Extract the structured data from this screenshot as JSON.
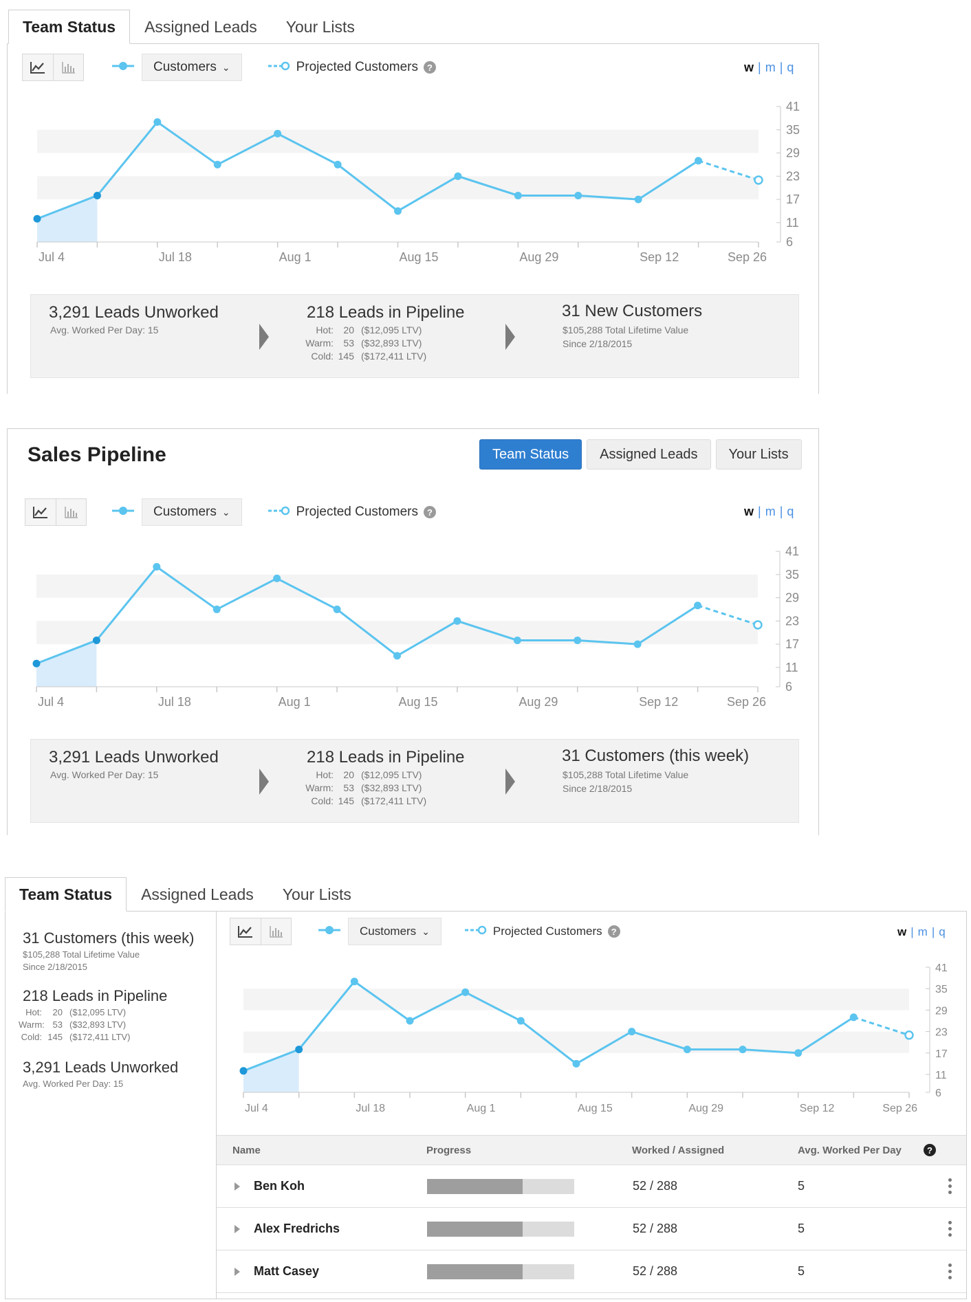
{
  "colors": {
    "accent": "#2f7fd1",
    "series": "#5bc4ef",
    "fill": "#d9ecfb",
    "point_first": "#1e98d8",
    "band": "#f4f4f4"
  },
  "tabs": {
    "team_status": "Team Status",
    "assigned_leads": "Assigned Leads",
    "your_lists": "Your Lists"
  },
  "panel2": {
    "title": "Sales Pipeline"
  },
  "toolbar": {
    "line_icon": "line-chart-icon",
    "bar_icon": "bar-chart-icon",
    "series_dropdown": "Customers",
    "projected_label": "Projected Customers",
    "period_w": "w",
    "period_m": "m",
    "period_q": "q",
    "period_sep": "|"
  },
  "chart_data": {
    "type": "line",
    "x_ticks": [
      "Jul 4",
      "Jul 18",
      "Aug 1",
      "Aug 15",
      "Aug 29",
      "Sep 12",
      "Sep 26"
    ],
    "y_ticks": [
      41,
      35,
      29,
      23,
      17,
      11,
      6
    ],
    "ylim": [
      6,
      41
    ],
    "series": [
      {
        "name": "Customers",
        "x": [
          "Jul 4",
          "Jul 11",
          "Jul 18",
          "Jul 25",
          "Aug 1",
          "Aug 8",
          "Aug 15",
          "Aug 22",
          "Aug 29",
          "Sep 5",
          "Sep 12",
          "Sep 19"
        ],
        "values": [
          12,
          18,
          37,
          26,
          34,
          26,
          14,
          23,
          18,
          18,
          17,
          27
        ]
      },
      {
        "name": "Projected Customers",
        "x": [
          "Sep 19",
          "Sep 26"
        ],
        "values": [
          27,
          22
        ]
      }
    ],
    "grid_bands": true,
    "legend": "top-left"
  },
  "stats": {
    "unworked_title": "3,291 Leads Unworked",
    "unworked_sub": "Avg. Worked Per Day: 15",
    "pipeline_title": "218 Leads in Pipeline",
    "hot_label": "Hot:",
    "hot_count": "20",
    "hot_ltv": "($12,095 LTV)",
    "warm_label": "Warm:",
    "warm_count": "53",
    "warm_ltv": "($32,893 LTV)",
    "cold_label": "Cold:",
    "cold_count": "145",
    "cold_ltv": "($172,411 LTV)",
    "new_customers_title": "31 New Customers",
    "customers_week_title": "31 Customers (this week)",
    "ltv_total": "$105,288 Total Lifetime Value",
    "since": "Since 2/18/2015"
  },
  "table": {
    "headers": {
      "name": "Name",
      "progress": "Progress",
      "worked": "Worked / Assigned",
      "avg": "Avg. Worked Per Day"
    },
    "rows": [
      {
        "name": "Ben Koh",
        "progress": 0.65,
        "worked": "52 / 288",
        "avg": "5"
      },
      {
        "name": "Alex Fredrichs",
        "progress": 0.65,
        "worked": "52 / 288",
        "avg": "5"
      },
      {
        "name": "Matt Casey",
        "progress": 0.65,
        "worked": "52 / 288",
        "avg": "5"
      }
    ]
  }
}
